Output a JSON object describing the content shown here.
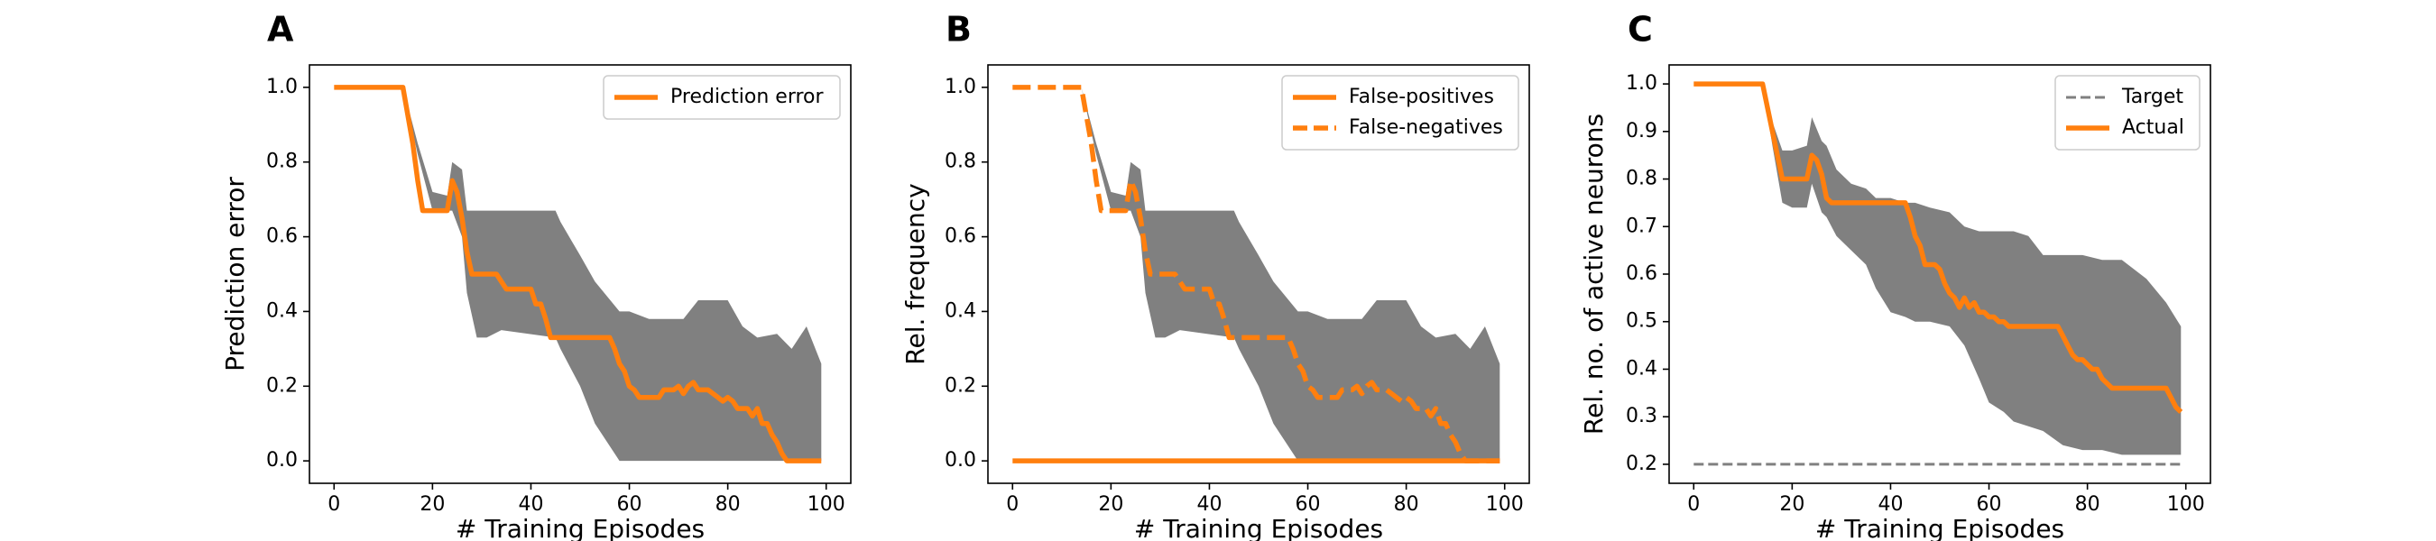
{
  "figure": {
    "panel_letters": [
      "A",
      "B",
      "C"
    ]
  },
  "colors": {
    "orange": "#ff7f0e",
    "band": "#808080",
    "target": "#808080"
  },
  "chart_data": [
    {
      "type": "line",
      "panel": "A",
      "xlabel": "# Training Episodes",
      "ylabel": "Prediction error",
      "xlim": [
        -5,
        105
      ],
      "ylim": [
        -0.06,
        1.06
      ],
      "xticks": [
        0,
        20,
        40,
        60,
        80,
        100
      ],
      "yticks": [
        0.0,
        0.2,
        0.4,
        0.6,
        0.8,
        1.0
      ],
      "ytick_labels": [
        "0.0",
        "0.2",
        "0.4",
        "0.6",
        "0.8",
        "1.0"
      ],
      "legend_position": "upper right",
      "band": {
        "x": [
          0,
          14,
          17,
          20,
          23,
          24,
          26,
          27,
          29,
          31,
          34,
          45,
          46,
          50,
          53,
          58,
          60,
          64,
          66,
          71,
          74,
          77,
          80,
          83,
          86,
          90,
          93,
          96,
          99
        ],
        "upper": [
          1.0,
          1.0,
          0.85,
          0.72,
          0.71,
          0.8,
          0.78,
          0.67,
          0.67,
          0.67,
          0.67,
          0.67,
          0.64,
          0.55,
          0.48,
          0.4,
          0.4,
          0.38,
          0.38,
          0.38,
          0.43,
          0.43,
          0.43,
          0.36,
          0.33,
          0.34,
          0.3,
          0.36,
          0.26
        ],
        "lower": [
          1.0,
          1.0,
          0.82,
          0.67,
          0.67,
          0.67,
          0.6,
          0.45,
          0.33,
          0.33,
          0.35,
          0.33,
          0.3,
          0.2,
          0.1,
          0.0,
          0.0,
          0.0,
          0.0,
          0.0,
          0.0,
          0.0,
          0.0,
          0.0,
          0.0,
          0.0,
          0.0,
          0.0,
          0.0
        ]
      },
      "series": [
        {
          "name": "Prediction error",
          "style": "solid",
          "x": [
            0,
            14,
            16,
            17,
            18,
            19,
            20,
            21,
            22,
            23,
            24,
            25,
            26,
            27,
            28,
            29,
            30,
            31,
            32,
            33,
            34,
            35,
            36,
            37,
            38,
            39,
            40,
            41,
            42,
            43,
            44,
            45,
            46,
            47,
            48,
            49,
            50,
            51,
            52,
            53,
            54,
            55,
            56,
            57,
            58,
            59,
            60,
            61,
            62,
            63,
            64,
            65,
            66,
            67,
            68,
            69,
            70,
            71,
            72,
            73,
            74,
            75,
            76,
            77,
            78,
            79,
            80,
            81,
            82,
            83,
            84,
            85,
            86,
            87,
            88,
            89,
            90,
            91,
            92,
            93,
            94,
            95,
            96,
            97,
            98,
            99
          ],
          "y": [
            1.0,
            1.0,
            0.85,
            0.75,
            0.67,
            0.67,
            0.67,
            0.67,
            0.67,
            0.67,
            0.75,
            0.72,
            0.65,
            0.56,
            0.5,
            0.5,
            0.5,
            0.5,
            0.5,
            0.5,
            0.48,
            0.46,
            0.46,
            0.46,
            0.46,
            0.46,
            0.46,
            0.42,
            0.42,
            0.38,
            0.33,
            0.33,
            0.33,
            0.33,
            0.33,
            0.33,
            0.33,
            0.33,
            0.33,
            0.33,
            0.33,
            0.33,
            0.33,
            0.3,
            0.26,
            0.24,
            0.2,
            0.19,
            0.17,
            0.17,
            0.17,
            0.17,
            0.17,
            0.19,
            0.19,
            0.19,
            0.2,
            0.18,
            0.2,
            0.21,
            0.19,
            0.19,
            0.19,
            0.18,
            0.17,
            0.16,
            0.17,
            0.16,
            0.14,
            0.14,
            0.14,
            0.12,
            0.14,
            0.1,
            0.1,
            0.07,
            0.05,
            0.02,
            0.0,
            0.0,
            0.0,
            0.0,
            0.0,
            0.0,
            0.0,
            0.0
          ]
        }
      ]
    },
    {
      "type": "line",
      "panel": "B",
      "xlabel": "# Training Episodes",
      "ylabel": "Rel. frequency",
      "xlim": [
        -5,
        105
      ],
      "ylim": [
        -0.06,
        1.06
      ],
      "xticks": [
        0,
        20,
        40,
        60,
        80,
        100
      ],
      "yticks": [
        0.0,
        0.2,
        0.4,
        0.6,
        0.8,
        1.0
      ],
      "ytick_labels": [
        "0.0",
        "0.2",
        "0.4",
        "0.6",
        "0.8",
        "1.0"
      ],
      "legend_position": "upper right",
      "band": {
        "x": [
          0,
          14,
          17,
          20,
          23,
          24,
          26,
          27,
          29,
          31,
          34,
          45,
          46,
          50,
          53,
          58,
          60,
          64,
          66,
          71,
          74,
          77,
          80,
          83,
          86,
          90,
          93,
          96,
          99
        ],
        "upper": [
          1.0,
          1.0,
          0.85,
          0.72,
          0.71,
          0.8,
          0.78,
          0.67,
          0.67,
          0.67,
          0.67,
          0.67,
          0.64,
          0.55,
          0.48,
          0.4,
          0.4,
          0.38,
          0.38,
          0.38,
          0.43,
          0.43,
          0.43,
          0.36,
          0.33,
          0.34,
          0.3,
          0.36,
          0.26
        ],
        "lower": [
          1.0,
          1.0,
          0.82,
          0.67,
          0.67,
          0.67,
          0.6,
          0.45,
          0.33,
          0.33,
          0.35,
          0.33,
          0.3,
          0.2,
          0.1,
          0.0,
          0.0,
          0.0,
          0.0,
          0.0,
          0.0,
          0.0,
          0.0,
          0.0,
          0.0,
          0.0,
          0.0,
          0.0,
          0.0
        ]
      },
      "series": [
        {
          "name": "False-positives",
          "style": "solid",
          "x": [
            0,
            99
          ],
          "y": [
            0.0,
            0.0
          ]
        },
        {
          "name": "False-negatives",
          "style": "dashed",
          "x": [
            0,
            14,
            16,
            17,
            18,
            19,
            20,
            21,
            22,
            23,
            24,
            25,
            26,
            27,
            28,
            29,
            30,
            31,
            32,
            33,
            34,
            35,
            36,
            37,
            38,
            39,
            40,
            41,
            42,
            43,
            44,
            45,
            46,
            47,
            48,
            49,
            50,
            51,
            52,
            53,
            54,
            55,
            56,
            57,
            58,
            59,
            60,
            61,
            62,
            63,
            64,
            65,
            66,
            67,
            68,
            69,
            70,
            71,
            72,
            73,
            74,
            75,
            76,
            77,
            78,
            79,
            80,
            81,
            82,
            83,
            84,
            85,
            86,
            87,
            88,
            89,
            90,
            91,
            92,
            93,
            94,
            95,
            96,
            97,
            98,
            99
          ],
          "y": [
            1.0,
            1.0,
            0.85,
            0.75,
            0.67,
            0.67,
            0.67,
            0.67,
            0.67,
            0.67,
            0.75,
            0.72,
            0.65,
            0.56,
            0.5,
            0.5,
            0.5,
            0.5,
            0.5,
            0.5,
            0.48,
            0.46,
            0.46,
            0.46,
            0.46,
            0.46,
            0.46,
            0.42,
            0.42,
            0.38,
            0.33,
            0.33,
            0.33,
            0.33,
            0.33,
            0.33,
            0.33,
            0.33,
            0.33,
            0.33,
            0.33,
            0.33,
            0.33,
            0.3,
            0.26,
            0.24,
            0.2,
            0.19,
            0.17,
            0.17,
            0.17,
            0.17,
            0.17,
            0.19,
            0.19,
            0.19,
            0.2,
            0.18,
            0.2,
            0.21,
            0.19,
            0.19,
            0.19,
            0.18,
            0.17,
            0.16,
            0.17,
            0.16,
            0.14,
            0.14,
            0.14,
            0.12,
            0.14,
            0.1,
            0.1,
            0.07,
            0.05,
            0.02,
            0.0,
            0.0,
            0.0,
            0.0,
            0.0,
            0.0,
            0.0,
            0.0
          ]
        }
      ]
    },
    {
      "type": "line",
      "panel": "C",
      "xlabel": "# Training Episodes",
      "ylabel": "Rel. no. of active neurons",
      "xlim": [
        -5,
        105
      ],
      "ylim": [
        0.16,
        1.04
      ],
      "xticks": [
        0,
        20,
        40,
        60,
        80,
        100
      ],
      "yticks": [
        0.2,
        0.3,
        0.4,
        0.5,
        0.6,
        0.7,
        0.8,
        0.9,
        1.0
      ],
      "ytick_labels": [
        "0.2",
        "0.3",
        "0.4",
        "0.5",
        "0.6",
        "0.7",
        "0.8",
        "0.9",
        "1.0"
      ],
      "legend_position": "upper right",
      "band": {
        "x": [
          0,
          14,
          16,
          18,
          20,
          23,
          24,
          26,
          27,
          29,
          32,
          35,
          37,
          40,
          43,
          45,
          48,
          52,
          55,
          58,
          60,
          63,
          65,
          68,
          71,
          75,
          79,
          83,
          87,
          92,
          96,
          99
        ],
        "upper": [
          1.0,
          1.0,
          0.92,
          0.86,
          0.86,
          0.87,
          0.93,
          0.88,
          0.87,
          0.82,
          0.79,
          0.78,
          0.76,
          0.76,
          0.75,
          0.75,
          0.74,
          0.73,
          0.7,
          0.69,
          0.69,
          0.69,
          0.69,
          0.68,
          0.64,
          0.64,
          0.64,
          0.63,
          0.63,
          0.59,
          0.54,
          0.49
        ],
        "lower": [
          1.0,
          1.0,
          0.87,
          0.75,
          0.74,
          0.74,
          0.79,
          0.73,
          0.72,
          0.68,
          0.65,
          0.62,
          0.57,
          0.52,
          0.51,
          0.5,
          0.5,
          0.49,
          0.45,
          0.38,
          0.33,
          0.31,
          0.29,
          0.28,
          0.27,
          0.24,
          0.23,
          0.23,
          0.22,
          0.22,
          0.22,
          0.22
        ]
      },
      "series": [
        {
          "name": "Target",
          "style": "dashed-thin",
          "x": [
            0,
            99
          ],
          "y": [
            0.2,
            0.2
          ]
        },
        {
          "name": "Actual",
          "style": "solid",
          "x": [
            0,
            14,
            16,
            17,
            18,
            20,
            22,
            23,
            24,
            25,
            26,
            27,
            28,
            30,
            32,
            34,
            36,
            38,
            40,
            42,
            43,
            44,
            45,
            46,
            47,
            48,
            49,
            50,
            51,
            52,
            53,
            54,
            55,
            56,
            57,
            58,
            59,
            60,
            61,
            62,
            63,
            64,
            65,
            66,
            67,
            68,
            70,
            72,
            74,
            75,
            76,
            77,
            78,
            79,
            80,
            81,
            82,
            83,
            84,
            85,
            86,
            87,
            88,
            90,
            92,
            94,
            96,
            97,
            98,
            99
          ],
          "y": [
            1.0,
            1.0,
            0.9,
            0.85,
            0.8,
            0.8,
            0.8,
            0.8,
            0.85,
            0.84,
            0.81,
            0.76,
            0.75,
            0.75,
            0.75,
            0.75,
            0.75,
            0.75,
            0.75,
            0.75,
            0.75,
            0.72,
            0.68,
            0.66,
            0.62,
            0.62,
            0.62,
            0.61,
            0.58,
            0.56,
            0.55,
            0.53,
            0.55,
            0.53,
            0.54,
            0.52,
            0.52,
            0.51,
            0.51,
            0.5,
            0.5,
            0.49,
            0.49,
            0.49,
            0.49,
            0.49,
            0.49,
            0.49,
            0.49,
            0.47,
            0.45,
            0.43,
            0.42,
            0.42,
            0.41,
            0.4,
            0.4,
            0.38,
            0.37,
            0.36,
            0.36,
            0.36,
            0.36,
            0.36,
            0.36,
            0.36,
            0.36,
            0.34,
            0.32,
            0.31
          ]
        }
      ]
    }
  ]
}
